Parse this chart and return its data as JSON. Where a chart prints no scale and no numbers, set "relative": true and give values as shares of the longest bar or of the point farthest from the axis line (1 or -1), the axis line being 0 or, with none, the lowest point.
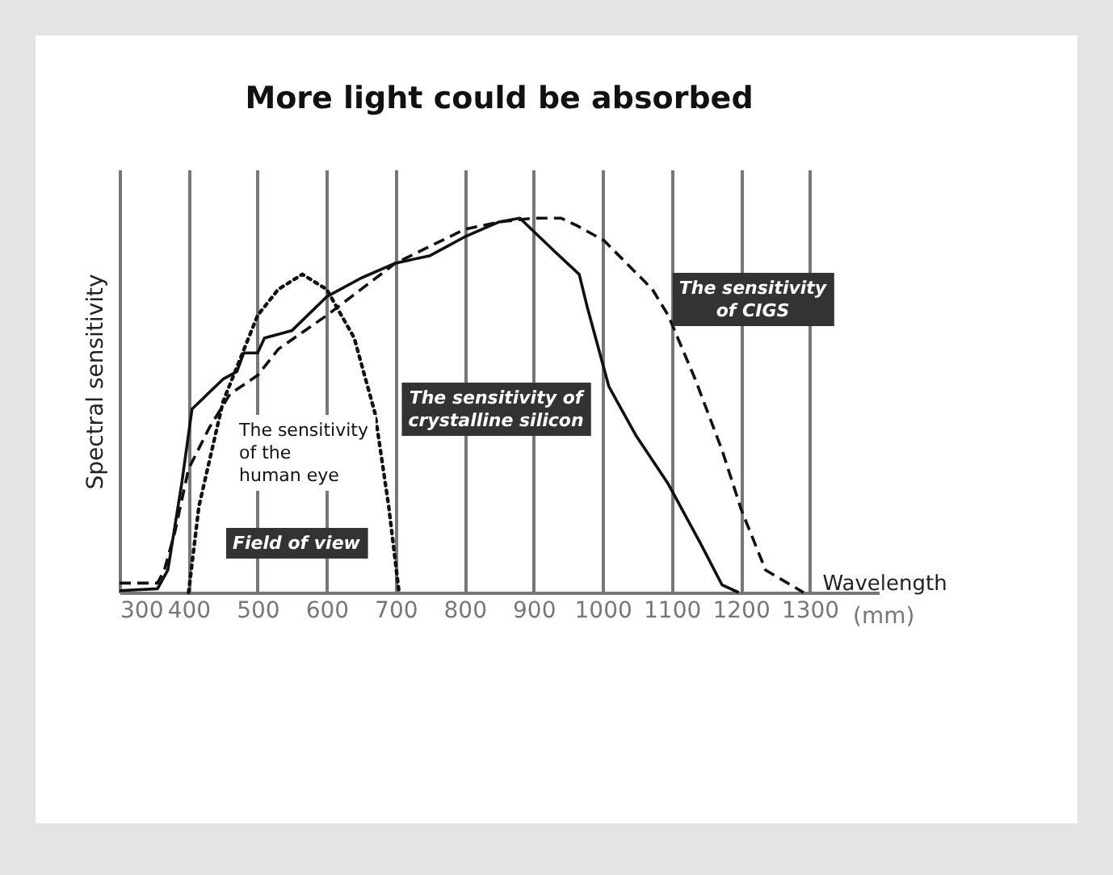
{
  "chart_data": {
    "type": "line",
    "title": "More light could be absorbed",
    "xlabel": "Wavelength",
    "ylabel": "Spectral sensitivity",
    "relative": true,
    "xlim": [
      300,
      1400
    ],
    "xticks": [
      300,
      400,
      500,
      600,
      700,
      800,
      900,
      1000,
      1100,
      1200,
      1300
    ],
    "grid": "x",
    "marker": "none",
    "annotations": [
      "Field of view",
      "(mm)"
    ],
    "series": [
      {
        "name": "The sensitivity of crystalline silicon",
        "color": "#111111",
        "line_style": "solid",
        "x": [
          300,
          355,
          370,
          390,
          405,
          450,
          470,
          480,
          500,
          510,
          550,
          600,
          650,
          700,
          750,
          800,
          850,
          880,
          931,
          966,
          978,
          1009,
          1048,
          1095,
          1142,
          1173,
          1197
        ],
        "values": [
          0.005,
          0.01,
          0.06,
          0.29,
          0.49,
          0.57,
          0.59,
          0.64,
          0.64,
          0.68,
          0.7,
          0.79,
          0.84,
          0.88,
          0.9,
          0.95,
          0.99,
          1.0,
          0.91,
          0.85,
          0.76,
          0.55,
          0.42,
          0.29,
          0.13,
          0.02,
          0
        ]
      },
      {
        "name": "The sensitivity of CIGS",
        "color": "#111111",
        "line_style": "dashed",
        "x": [
          300,
          355,
          365,
          380,
          400,
          430,
          460,
          500,
          530,
          600,
          650,
          700,
          800,
          850,
          900,
          940,
          963,
          1002,
          1072,
          1095,
          1134,
          1173,
          1201,
          1236,
          1291
        ],
        "values": [
          0.025,
          0.025,
          0.06,
          0.16,
          0.33,
          0.44,
          0.53,
          0.58,
          0.65,
          0.74,
          0.81,
          0.88,
          0.97,
          0.99,
          1.0,
          1.0,
          0.98,
          0.94,
          0.81,
          0.74,
          0.57,
          0.38,
          0.22,
          0.06,
          0
        ]
      },
      {
        "name": "The sensitivity of the human eye",
        "color": "#111111",
        "line_style": "dotted",
        "x": [
          400,
          415,
          450,
          500,
          530,
          565,
          600,
          640,
          670,
          690,
          705
        ],
        "values": [
          0,
          0.23,
          0.51,
          0.74,
          0.81,
          0.85,
          0.81,
          0.68,
          0.48,
          0.23,
          0
        ]
      }
    ]
  }
}
